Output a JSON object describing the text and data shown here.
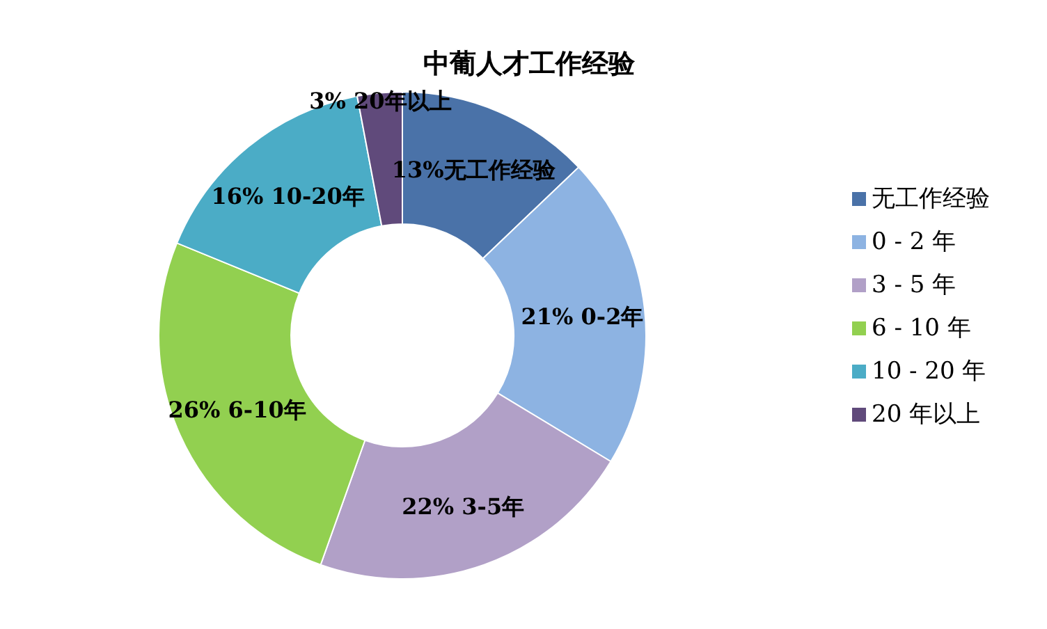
{
  "chart_data": {
    "type": "donut",
    "title": "中葡人才工作经验",
    "categories": [
      "无工作经验",
      "0 - 2 年",
      "3 - 5 年",
      "6 - 10 年",
      "10 - 20 年",
      "20 年以上"
    ],
    "values": [
      13,
      21,
      22,
      26,
      16,
      3
    ],
    "value_labels": [
      "13%无工作经验",
      "21% 0-2年",
      "22% 3-5年",
      "26% 6-10年",
      "16% 10-20年",
      "3% 20年以上"
    ],
    "colors": [
      "#4a72a8",
      "#8db3e2",
      "#b1a0c7",
      "#92d050",
      "#4bacc6",
      "#604a7b"
    ],
    "legend": "right"
  }
}
